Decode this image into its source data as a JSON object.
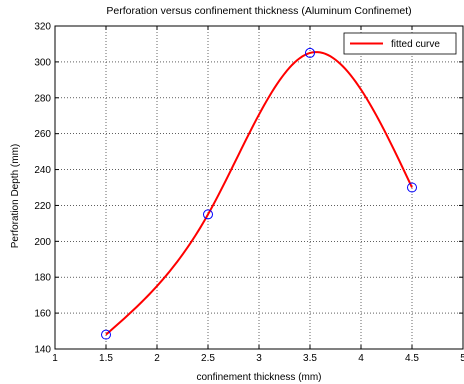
{
  "chart_data": {
    "type": "line",
    "title": "Perforation versus confinement thickness  (Aluminum Confinemet)",
    "xlabel": "confinement thickness (mm)",
    "ylabel": "Perforation Depth (mm)",
    "xlim": [
      1,
      5
    ],
    "ylim": [
      140,
      320
    ],
    "xticks": [
      1,
      1.5,
      2,
      2.5,
      3,
      3.5,
      4,
      4.5,
      5
    ],
    "xtick_labels": [
      "1",
      "1.5",
      "2",
      "2.5",
      "3",
      "3.5",
      "4",
      "4.5",
      "5"
    ],
    "yticks": [
      140,
      160,
      180,
      200,
      220,
      240,
      260,
      280,
      300,
      320
    ],
    "ytick_labels": [
      "140",
      "160",
      "180",
      "200",
      "220",
      "240",
      "260",
      "280",
      "300",
      "320"
    ],
    "grid": true,
    "legend_position": "top-right",
    "series": [
      {
        "name": "",
        "kind": "markers",
        "marker": "circle",
        "color": "#0000ff",
        "x": [
          1.5,
          2.5,
          3.5,
          4.5
        ],
        "y": [
          148,
          215,
          305,
          230
        ]
      },
      {
        "name": "fitted curve",
        "kind": "line",
        "color": "#ff0000",
        "x": [
          1.5,
          2.5,
          3.5,
          4.5
        ],
        "y": [
          148,
          215,
          305,
          230
        ]
      }
    ]
  }
}
